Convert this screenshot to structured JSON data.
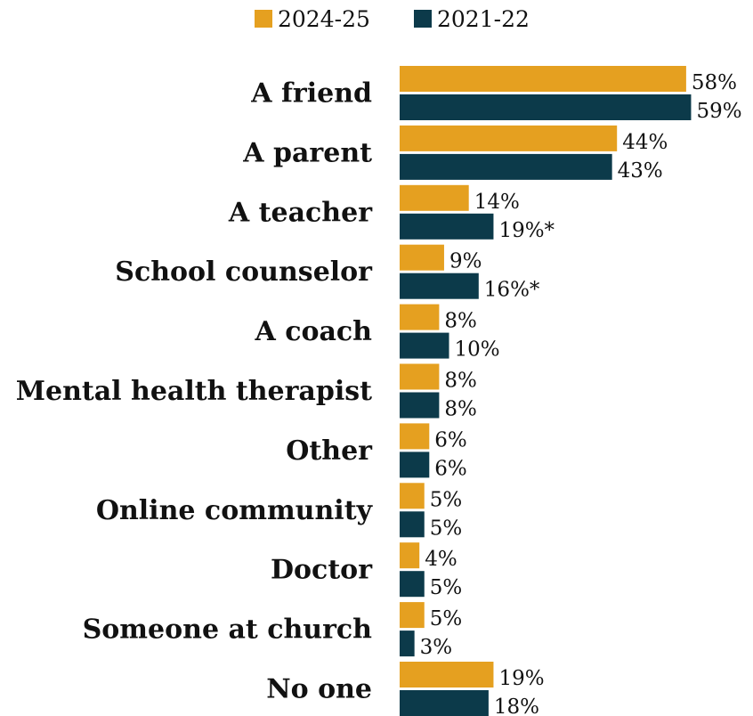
{
  "chart_data": {
    "type": "bar",
    "orientation": "horizontal",
    "categories": [
      "A friend",
      "A parent",
      "A teacher",
      "School counselor",
      "A coach",
      "Mental health therapist",
      "Other",
      "Online community",
      "Doctor",
      "Someone at church",
      "No one"
    ],
    "series": [
      {
        "name": "2024-25",
        "color": "#E5A020",
        "values": [
          58,
          44,
          14,
          9,
          8,
          8,
          6,
          5,
          4,
          5,
          19
        ],
        "labels": [
          "58%",
          "44%",
          "14%",
          "9%",
          "8%",
          "8%",
          "6%",
          "5%",
          "4%",
          "5%",
          "19%"
        ]
      },
      {
        "name": "2021-22",
        "color": "#0C3A4A",
        "values": [
          59,
          43,
          19,
          16,
          10,
          8,
          6,
          5,
          5,
          3,
          18
        ],
        "labels": [
          "59%",
          "43%",
          "19%*",
          "16%*",
          "10%",
          "8%",
          "6%",
          "5%",
          "5%",
          "3%",
          "18%"
        ]
      }
    ],
    "xlim": [
      0,
      60
    ],
    "grid": false,
    "legend": "top"
  }
}
